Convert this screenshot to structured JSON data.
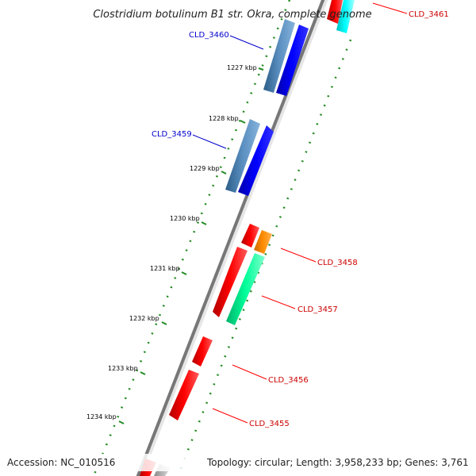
{
  "title": "Clostridium botulinum B1 str. Okra, complete genome",
  "accession_text": "Accession: NC_010516",
  "topology_text": "Topology: circular; Length: 3,958,233 bp; Genes: 3,761",
  "ticks": [
    {
      "label": "1227 kbp"
    },
    {
      "label": "1228 kbp"
    },
    {
      "label": "1229 kbp"
    },
    {
      "label": "1230 kbp"
    },
    {
      "label": "1231 kbp"
    },
    {
      "label": "1232 kbp"
    },
    {
      "label": "1233 kbp"
    },
    {
      "label": "1234 kbp"
    }
  ],
  "genes": [
    {
      "name": "CLD_3461",
      "strand": "reverse",
      "color": "#ff0000"
    },
    {
      "name": "CLD_3460",
      "strand": "forward",
      "color": "#0000ee"
    },
    {
      "name": "CLD_3459",
      "strand": "forward",
      "color": "#0000ee"
    },
    {
      "name": "CLD_3458",
      "strand": "reverse",
      "color": "#ff0000"
    },
    {
      "name": "CLD_3457",
      "strand": "reverse",
      "color": "#ff0000"
    },
    {
      "name": "CLD_3456",
      "strand": "reverse",
      "color": "#ff0000"
    },
    {
      "name": "CLD_3455",
      "strand": "reverse",
      "color": "#ff0000"
    }
  ],
  "colors": {
    "forward_gene": "#0000ff",
    "forward_gene_alt": "#4682b4",
    "reverse_gene": "#ff0000",
    "orange_feature": "#ff8c00",
    "teal_feature": "#00ff99",
    "cyan_feature": "#00ffff",
    "backbone": "#808080",
    "tick_dots": "#228b22"
  }
}
